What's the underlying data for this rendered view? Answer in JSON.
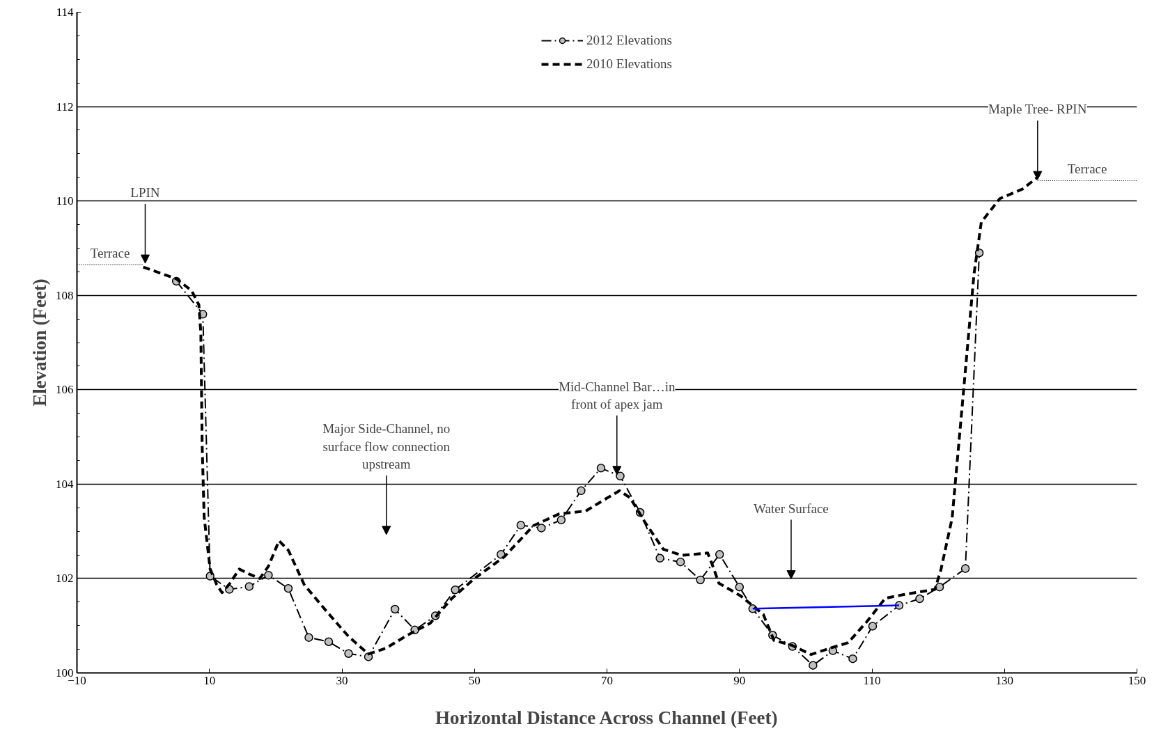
{
  "chart_data": {
    "type": "line",
    "xlabel": "Horizontal Distance Across Channel (Feet)",
    "ylabel": "Elevation (Feet)",
    "xlim": [
      -10,
      150
    ],
    "xticks": [
      -10,
      10,
      30,
      50,
      70,
      90,
      110,
      130,
      150
    ],
    "ylim": [
      100,
      114
    ],
    "yticks": [
      100,
      102,
      104,
      106,
      108,
      110,
      112,
      114
    ],
    "grid": "y",
    "legend": "top",
    "series": [
      {
        "name": "2012 Elevations",
        "color": "#000000",
        "line_style": "dashdot",
        "marker": "circle",
        "x": [
          5.0,
          9.0,
          10.1,
          13.0,
          16.0,
          18.9,
          21.9,
          25.0,
          28.0,
          31.0,
          34.0,
          38.0,
          41.0,
          44.1,
          47.1,
          54.0,
          57.0,
          60.1,
          63.1,
          66.1,
          69.1,
          72.0,
          75.0,
          78.0,
          81.1,
          84.1,
          87.0,
          90.0,
          92.0,
          95.0,
          98.0,
          101.1,
          104.1,
          107.1,
          110.1,
          114.1,
          117.2,
          120.2,
          124.1,
          126.2
        ],
        "values": [
          108.3,
          107.6,
          102.05,
          101.77,
          101.83,
          102.07,
          101.79,
          100.75,
          100.66,
          100.41,
          100.34,
          101.35,
          100.91,
          101.21,
          101.76,
          102.51,
          103.13,
          103.07,
          103.24,
          103.86,
          104.34,
          104.17,
          103.4,
          102.43,
          102.35,
          101.97,
          102.51,
          101.82,
          101.36,
          100.8,
          100.56,
          100.16,
          100.47,
          100.3,
          100.99,
          101.43,
          101.57,
          101.82,
          102.21,
          108.9
        ]
      },
      {
        "name": "2010 Elevations",
        "color": "#000000",
        "line_style": "dashed",
        "marker": "none",
        "x": [
          0,
          5.0,
          7.3,
          8.4,
          8.7,
          8.9,
          9.2,
          10.1,
          11.1,
          11.9,
          13.1,
          14.5,
          15.9,
          17.6,
          18.9,
          20.5,
          21.9,
          24.3,
          27.7,
          31.0,
          34.0,
          36.6,
          39.9,
          43.3,
          46.6,
          50.0,
          54.5,
          58.9,
          62.8,
          66.8,
          69.6,
          71.9,
          73.5,
          75.7,
          78.5,
          81.3,
          85.2,
          85.8,
          86.9,
          90.2,
          93.6,
          95.2,
          98.0,
          100.8,
          103.6,
          106.4,
          109.2,
          112.0,
          114.8,
          119.5,
          120.4,
          122.1,
          123.7,
          125.4,
          126.5,
          129.3,
          132.7,
          134.9
        ],
        "values": [
          108.6,
          108.35,
          108.1,
          107.8,
          107.2,
          104.8,
          103.3,
          102.2,
          101.87,
          101.7,
          101.9,
          102.2,
          102.1,
          102.0,
          102.26,
          102.8,
          102.6,
          101.87,
          101.3,
          100.77,
          100.4,
          100.52,
          100.8,
          101.05,
          101.58,
          102.0,
          102.46,
          103.12,
          103.37,
          103.43,
          103.67,
          103.86,
          103.71,
          103.2,
          102.62,
          102.49,
          102.54,
          102.33,
          101.9,
          101.63,
          101.24,
          100.69,
          100.58,
          100.39,
          100.52,
          100.64,
          101.08,
          101.58,
          101.66,
          101.77,
          102.18,
          103.28,
          105.78,
          108.45,
          109.55,
          110.05,
          110.25,
          110.49
        ]
      },
      {
        "color": "#0000ff",
        "line_style": "solid",
        "marker": "none",
        "x": [
          92.0,
          114.1
        ],
        "values": [
          101.36,
          101.43
        ]
      },
      {
        "color": "#000000",
        "line_style": "dotted",
        "marker": "none",
        "x": [
          -10,
          0
        ],
        "values": [
          108.65,
          108.65
        ]
      },
      {
        "color": "#000000",
        "line_style": "dotted",
        "marker": "none",
        "x": [
          135,
          150
        ],
        "values": [
          110.43,
          110.43
        ]
      }
    ],
    "annotations": [
      {
        "text": "LPIN",
        "x": 0.3,
        "y": 108.68
      },
      "Terrace",
      "Major Side-Channel, no\nsurface flow connection\nupstream",
      {
        "text": "Mid-Channel Bar…in\nfront of apex jam",
        "x": 71.5,
        "y": 104.2
      },
      "Water Surface",
      "Terrace",
      {
        "text": "Maple Tree- RPIN",
        "x": 135.0,
        "y": 110.45
      }
    ]
  }
}
